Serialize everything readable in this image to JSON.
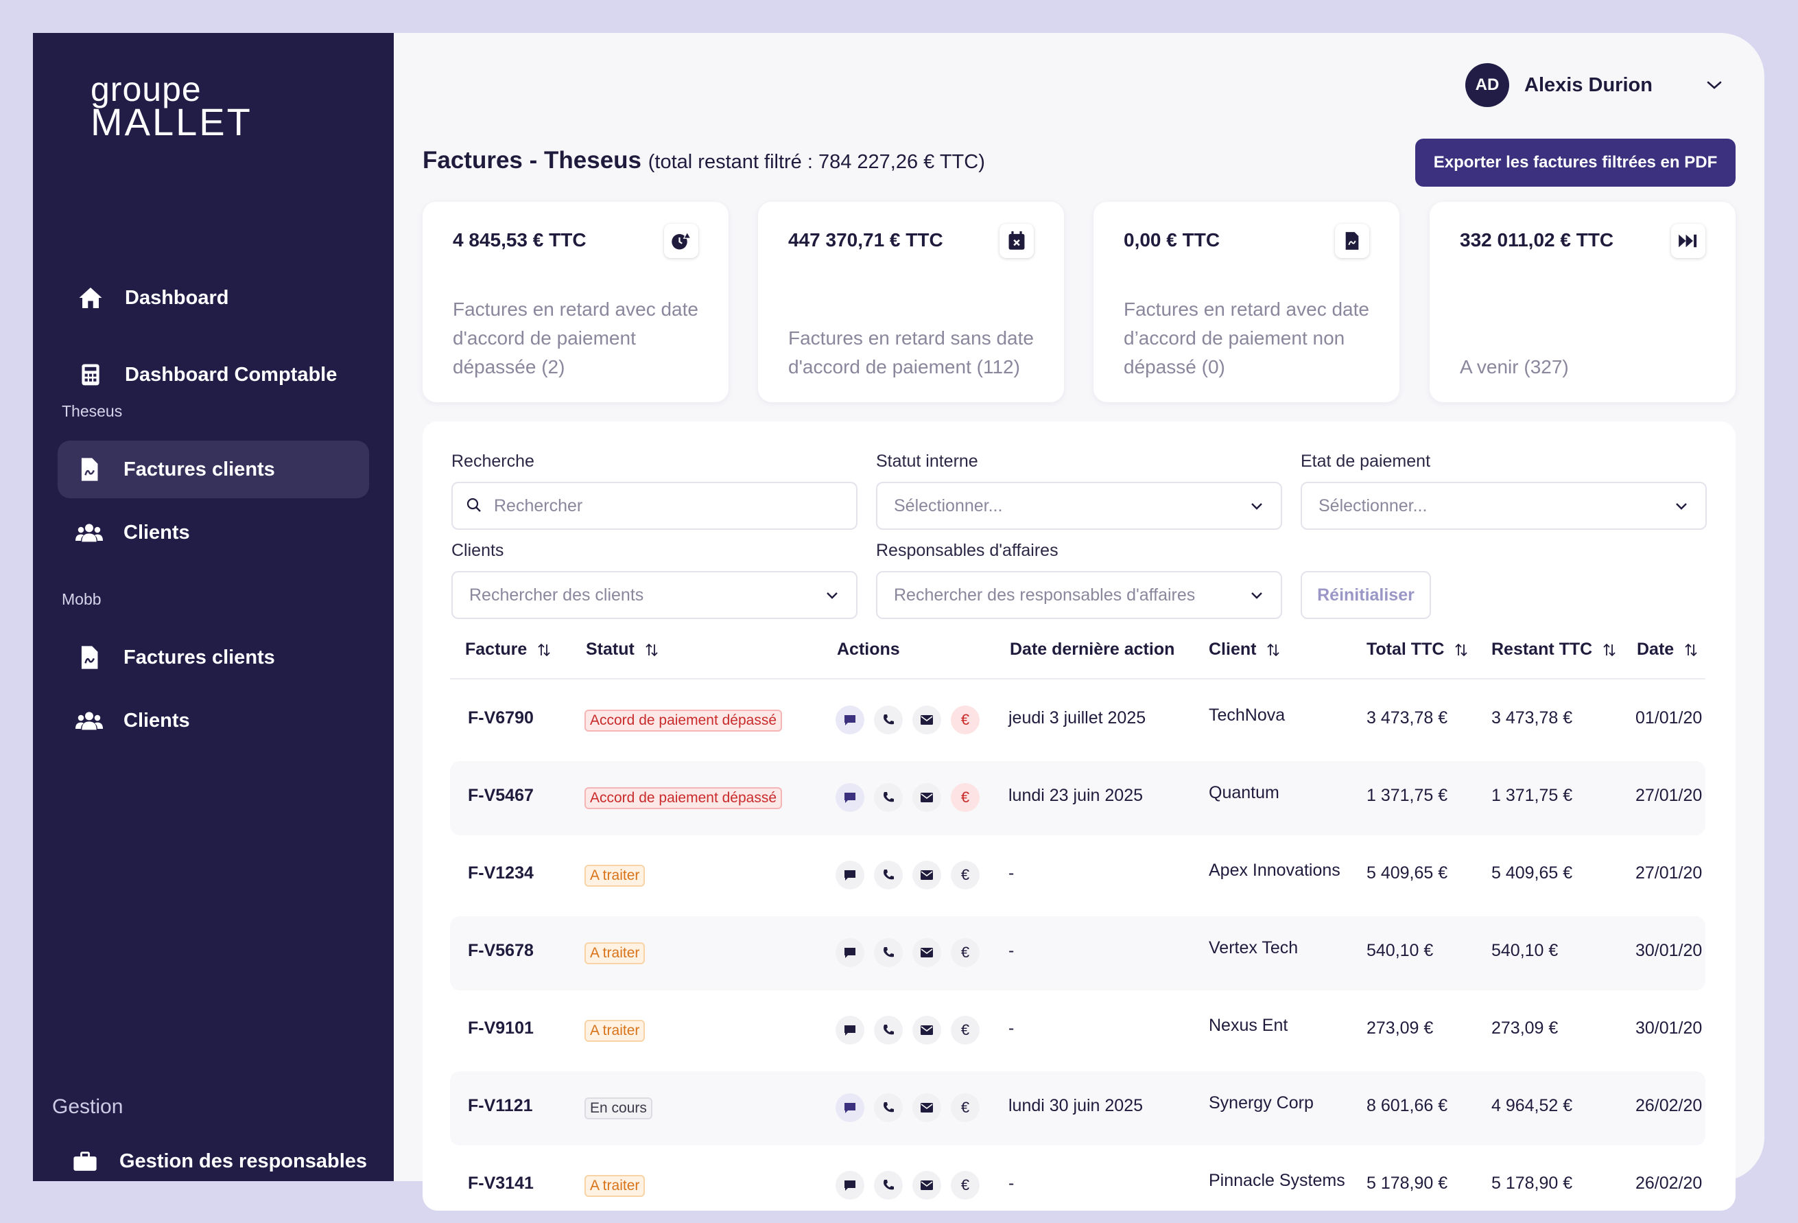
{
  "brand": {
    "line1": "groupe",
    "line2": "MALLET"
  },
  "sidebar": {
    "top_items": [
      {
        "label": "Dashboard",
        "icon": "home-icon"
      },
      {
        "label": "Dashboard Comptable",
        "icon": "calculator-icon"
      }
    ],
    "sections": [
      {
        "label": "Theseus",
        "items": [
          {
            "label": "Factures clients",
            "icon": "invoice-icon",
            "active": true
          },
          {
            "label": "Clients",
            "icon": "users-icon"
          }
        ]
      },
      {
        "label": "Mobb",
        "items": [
          {
            "label": "Factures clients",
            "icon": "invoice-icon"
          },
          {
            "label": "Clients",
            "icon": "users-icon"
          }
        ]
      }
    ],
    "gestion": {
      "label": "Gestion",
      "item": "Gestion des responsables"
    }
  },
  "user": {
    "initials": "AD",
    "name": "Alexis Durion"
  },
  "header": {
    "title_prefix": "Factures",
    "title_entity": "- Theseus",
    "title_total": "(total restant filtré : 784 227,26 € TTC)",
    "export_label": "Exporter les factures filtrées en PDF"
  },
  "stats": [
    {
      "amount": "4 845,53 € TTC",
      "desc": "Factures en retard avec date d'accord de paiement dépassée (2)",
      "icon": "clock-alert-icon"
    },
    {
      "amount": "447 370,71 € TTC",
      "desc": "Factures en retard sans date d'accord de paiement (112)",
      "icon": "calendar-x-icon"
    },
    {
      "amount": "0,00 € TTC",
      "desc": "Factures en retard avec date d’accord de paiement non dépassé (0)",
      "icon": "file-icon"
    },
    {
      "amount": "332 011,02 € TTC",
      "desc": "A venir (327)",
      "icon": "fast-forward-icon"
    }
  ],
  "filters": {
    "search_label": "Recherche",
    "search_placeholder": "Rechercher",
    "statut_label": "Statut interne",
    "statut_value": "Sélectionner...",
    "etat_label": "Etat de paiement",
    "etat_value": "Sélectionner...",
    "clients_label": "Clients",
    "clients_value": "Rechercher des clients",
    "resp_label": "Responsables d'affaires",
    "resp_value": "Rechercher des responsables d'affaires",
    "reset_label": "Réinitialiser"
  },
  "table": {
    "columns": [
      "Facture",
      "Statut",
      "Actions",
      "Date dernière action",
      "Client",
      "Total TTC",
      "Restant TTC",
      "Date"
    ],
    "rows": [
      {
        "id": "F-V6790",
        "status": "Accord de paiement dépassé",
        "status_type": "red",
        "last": "jeudi 3 juillet 2025",
        "client": "TechNova",
        "total": "3 473,78 €",
        "rest": "3 473,78 €",
        "date": "01/01/20",
        "chat_hl": true,
        "euro_red": true
      },
      {
        "id": "F-V5467",
        "status": "Accord de paiement dépassé",
        "status_type": "red",
        "last": "lundi 23 juin 2025",
        "client": "Quantum",
        "total": "1 371,75 €",
        "rest": "1 371,75 €",
        "date": "27/01/20",
        "chat_hl": true,
        "euro_red": true
      },
      {
        "id": "F-V1234",
        "status": "A traiter",
        "status_type": "orange",
        "last": "-",
        "client": "Apex Innovations",
        "total": "5 409,65 €",
        "rest": "5 409,65 €",
        "date": "27/01/20",
        "chat_hl": false,
        "euro_red": false
      },
      {
        "id": "F-V5678",
        "status": "A traiter",
        "status_type": "orange",
        "last": "-",
        "client": "Vertex Tech",
        "total": "540,10 €",
        "rest": "540,10 €",
        "date": "30/01/20",
        "chat_hl": false,
        "euro_red": false
      },
      {
        "id": "F-V9101",
        "status": "A traiter",
        "status_type": "orange",
        "last": "-",
        "client": "Nexus Ent",
        "total": "273,09 €",
        "rest": "273,09 €",
        "date": "30/01/20",
        "chat_hl": false,
        "euro_red": false
      },
      {
        "id": "F-V1121",
        "status": "En cours",
        "status_type": "grey",
        "last": "lundi 30 juin 2025",
        "client": "Synergy Corp",
        "total": "8 601,66 €",
        "rest": "4 964,52 €",
        "date": "26/02/20",
        "chat_hl": true,
        "euro_red": false
      },
      {
        "id": "F-V3141",
        "status": "A traiter",
        "status_type": "orange",
        "last": "-",
        "client": "Pinnacle Systems",
        "total": "5 178,90 €",
        "rest": "5 178,90 €",
        "date": "26/02/20",
        "chat_hl": false,
        "euro_red": false
      }
    ]
  },
  "colors": {
    "sidebar": "#221d47",
    "accent": "#3b317f",
    "danger": "#c92a2a",
    "warning": "#d9731a"
  }
}
